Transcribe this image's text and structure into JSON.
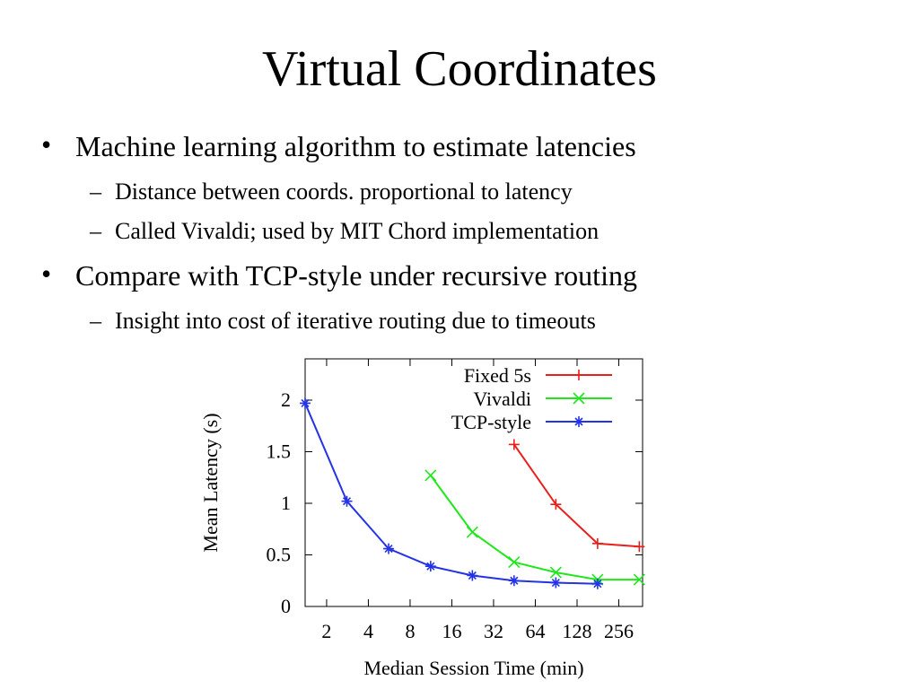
{
  "slide": {
    "title": "Virtual Coordinates",
    "bullets": [
      {
        "text": "Machine learning algorithm to estimate latencies",
        "sub": [
          "Distance between coords. proportional to latency",
          "Called Vivaldi; used by MIT Chord implementation"
        ]
      },
      {
        "text": "Compare with TCP-style under recursive routing",
        "sub": [
          "Insight into cost of iterative routing due to timeouts"
        ]
      }
    ]
  },
  "chart_data": {
    "type": "line",
    "x_label": "Median Session Time (min)",
    "y_label": "Mean Latency (s)",
    "xscale": "log",
    "xlim": [
      1.4,
      380
    ],
    "xticks": [
      2,
      4,
      8,
      16,
      32,
      64,
      128,
      256
    ],
    "ylim": [
      0,
      2.4
    ],
    "yticks": [
      0,
      0.5,
      1,
      1.5,
      2
    ],
    "legend": "top-right",
    "series": [
      {
        "name": "Fixed 5s",
        "color": "#e8201c",
        "marker": "plus",
        "x": [
          45,
          90,
          180,
          360
        ],
        "values": [
          1.57,
          0.99,
          0.61,
          0.58
        ]
      },
      {
        "name": "Vivaldi",
        "color": "#1ee81a",
        "marker": "cross",
        "x": [
          11.25,
          22.5,
          45,
          90,
          180,
          360
        ],
        "values": [
          1.27,
          0.72,
          0.43,
          0.33,
          0.26,
          0.26
        ]
      },
      {
        "name": "TCP-style",
        "color": "#2433e6",
        "marker": "star",
        "x": [
          1.4,
          2.8,
          5.6,
          11.25,
          22.5,
          45,
          90,
          180
        ],
        "values": [
          1.97,
          1.02,
          0.56,
          0.39,
          0.3,
          0.25,
          0.23,
          0.22
        ]
      }
    ]
  }
}
